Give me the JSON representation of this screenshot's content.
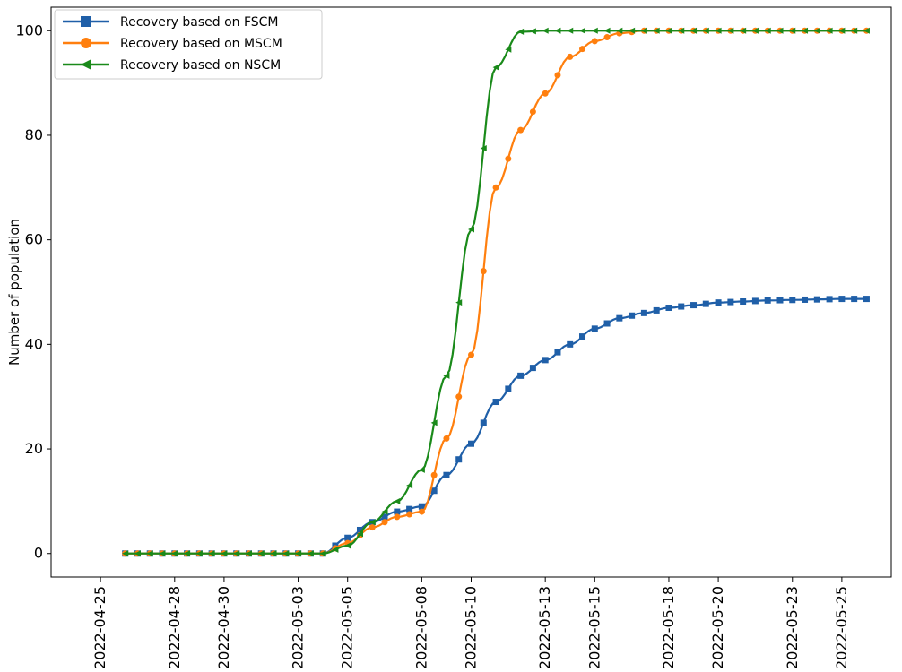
{
  "chart_data": {
    "type": "line",
    "title": "",
    "xlabel": "",
    "ylabel": "Number of population",
    "ylim": [
      -4.5,
      104.5
    ],
    "xlim": [
      "2022-04-23",
      "2022-05-27"
    ],
    "yticks": [
      0,
      20,
      40,
      60,
      80,
      100
    ],
    "xticks": [
      "2022-04-25",
      "2022-04-28",
      "2022-04-30",
      "2022-05-03",
      "2022-05-05",
      "2022-05-08",
      "2022-05-10",
      "2022-05-13",
      "2022-05-15",
      "2022-05-18",
      "2022-05-20",
      "2022-05-23",
      "2022-05-25"
    ],
    "grid": false,
    "legend": "top-left",
    "x": [
      "2022-04-26",
      "2022-04-27",
      "2022-04-28",
      "2022-04-29",
      "2022-04-30",
      "2022-05-01",
      "2022-05-02",
      "2022-05-03",
      "2022-05-04",
      "2022-05-05",
      "2022-05-06",
      "2022-05-07",
      "2022-05-08",
      "2022-05-09",
      "2022-05-10",
      "2022-05-11",
      "2022-05-12",
      "2022-05-13",
      "2022-05-14",
      "2022-05-15",
      "2022-05-16",
      "2022-05-17",
      "2022-05-18",
      "2022-05-19",
      "2022-05-20",
      "2022-05-21",
      "2022-05-22",
      "2022-05-23",
      "2022-05-24",
      "2022-05-25",
      "2022-05-26"
    ],
    "series": [
      {
        "name": "Recovery based on FSCM",
        "color": "#1f5fa8",
        "marker": "square",
        "values": [
          0,
          0,
          0,
          0,
          0,
          0,
          0,
          0,
          0,
          3,
          6,
          8,
          9,
          15,
          21,
          29,
          34,
          37,
          40,
          43,
          45,
          46,
          47,
          47.5,
          48,
          48.2,
          48.4,
          48.5,
          48.6,
          48.7,
          48.7
        ]
      },
      {
        "name": "Recovery based on MSCM",
        "color": "#ff7f0e",
        "marker": "circle",
        "values": [
          0,
          0,
          0,
          0,
          0,
          0,
          0,
          0,
          0,
          2,
          5,
          7,
          8,
          22,
          38,
          70,
          81,
          88,
          95,
          98,
          99.5,
          100,
          100,
          100,
          100,
          100,
          100,
          100,
          100,
          100,
          100
        ]
      },
      {
        "name": "Recovery based on NSCM",
        "color": "#1a8a1a",
        "marker": "triangle-left",
        "values": [
          0,
          0,
          0,
          0,
          0,
          0,
          0,
          0,
          0,
          1.5,
          6,
          10,
          16,
          34,
          62,
          93,
          99.8,
          100,
          100,
          100,
          100,
          100,
          100,
          100,
          100,
          100,
          100,
          100,
          100,
          100,
          100
        ]
      }
    ]
  }
}
